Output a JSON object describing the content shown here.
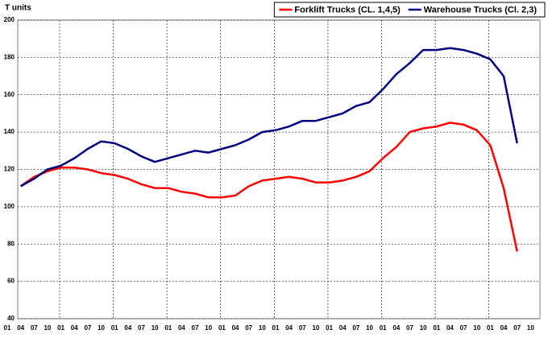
{
  "chart_data": {
    "type": "line",
    "y_label": "T units",
    "categories": [
      "01",
      "04",
      "07",
      "10",
      "01",
      "04",
      "07",
      "10",
      "01",
      "04",
      "07",
      "10",
      "01",
      "04",
      "07",
      "10",
      "01",
      "04",
      "07",
      "10",
      "01",
      "04",
      "07",
      "10",
      "01",
      "04",
      "07",
      "10",
      "01",
      "04",
      "07",
      "10",
      "01",
      "04",
      "07",
      "10",
      "01",
      "04",
      "07",
      "10"
    ],
    "series": [
      {
        "name": "Forklift Trucks (CL. 1,4,5)",
        "color": "#ff0000",
        "values": [
          null,
          111,
          116,
          119,
          121,
          121,
          120,
          118,
          117,
          115,
          112,
          110,
          110,
          108,
          107,
          105,
          105,
          106,
          111,
          114,
          115,
          116,
          115,
          113,
          113,
          114,
          116,
          119,
          126,
          132,
          140,
          142,
          143,
          145,
          144,
          141,
          133,
          110,
          76,
          null
        ]
      },
      {
        "name": "Warehouse Trucks (Cl. 2,3)",
        "color": "#000080",
        "values": [
          null,
          111,
          115,
          120,
          122,
          126,
          131,
          135,
          134,
          131,
          127,
          124,
          126,
          128,
          130,
          129,
          131,
          133,
          136,
          140,
          141,
          143,
          146,
          146,
          148,
          150,
          154,
          156,
          163,
          171,
          177,
          184,
          184,
          185,
          184,
          182,
          179,
          170,
          134,
          null
        ]
      }
    ],
    "ylim": [
      40,
      200
    ],
    "yticks": [
      40,
      60,
      80,
      100,
      120,
      140,
      160,
      180,
      200
    ],
    "grid": true,
    "legend": "top-right"
  }
}
